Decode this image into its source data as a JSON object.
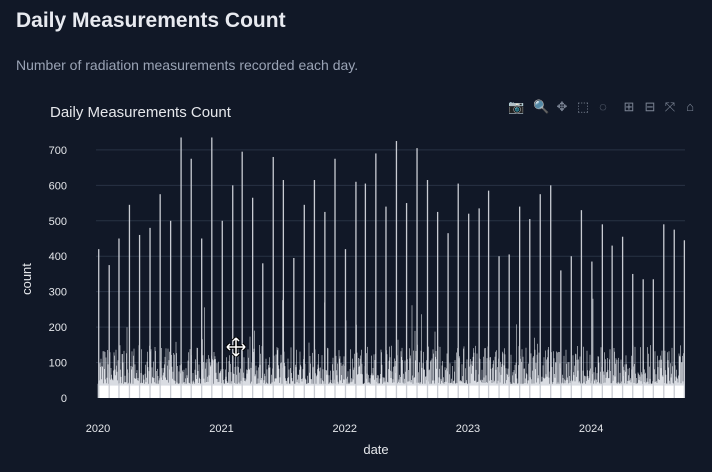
{
  "page": {
    "title": "Daily Measurements Count",
    "subtitle": "Number of radiation measurements recorded each day."
  },
  "toolbar": [
    {
      "name": "camera-icon",
      "glyph": "📷"
    },
    {
      "name": "zoom-icon",
      "glyph": "🔍"
    },
    {
      "name": "pan-icon",
      "glyph": "✥"
    },
    {
      "name": "box-select-icon",
      "glyph": "⬚"
    },
    {
      "name": "lasso-select-icon",
      "glyph": "◌"
    },
    {
      "name": "zoom-in-icon",
      "glyph": "⊞"
    },
    {
      "name": "zoom-out-icon",
      "glyph": "⊟"
    },
    {
      "name": "autoscale-icon",
      "glyph": "⤧"
    },
    {
      "name": "reset-axes-icon",
      "glyph": "⌂"
    }
  ],
  "colors": {
    "background": "#111827",
    "bar": "#f3f4f6",
    "grid": "#283244",
    "text": "#e5e7eb"
  },
  "chart_data": {
    "type": "bar",
    "title": "Daily Measurements Count",
    "xlabel": "date",
    "ylabel": "count",
    "xlim": [
      "2020-01-01",
      "2024-10-05"
    ],
    "ylim": [
      0,
      742
    ],
    "grid": true,
    "x_ticks": [
      "2020",
      "2021",
      "2022",
      "2023",
      "2024"
    ],
    "y_ticks": [
      0,
      100,
      200,
      300,
      400,
      500,
      600,
      700
    ],
    "typical_daily_range": [
      40,
      150
    ],
    "spikes": {
      "x": [
        "2020-01-03",
        "2020-02-03",
        "2020-03-03",
        "2020-04-03",
        "2020-05-03",
        "2020-06-03",
        "2020-07-03",
        "2020-08-03",
        "2020-09-03",
        "2020-10-03",
        "2020-11-03",
        "2020-12-03",
        "2021-01-03",
        "2021-02-03",
        "2021-03-03",
        "2021-04-03",
        "2021-05-03",
        "2021-06-03",
        "2021-07-03",
        "2021-08-03",
        "2021-09-03",
        "2021-10-03",
        "2021-11-03",
        "2021-12-03",
        "2022-01-03",
        "2022-02-03",
        "2022-03-03",
        "2022-04-03",
        "2022-05-03",
        "2022-06-03",
        "2022-07-03",
        "2022-08-03",
        "2022-09-03",
        "2022-10-03",
        "2022-11-03",
        "2022-12-03",
        "2023-01-03",
        "2023-02-03",
        "2023-03-03",
        "2023-04-03",
        "2023-05-03",
        "2023-06-03",
        "2023-07-03",
        "2023-08-03",
        "2023-09-03",
        "2023-10-03",
        "2023-11-03",
        "2023-12-03",
        "2024-01-03",
        "2024-02-03",
        "2024-03-03",
        "2024-04-03",
        "2024-05-03",
        "2024-06-03",
        "2024-07-03",
        "2024-08-03",
        "2024-09-03",
        "2024-10-03"
      ],
      "values": [
        420,
        375,
        450,
        545,
        460,
        480,
        575,
        500,
        735,
        675,
        450,
        735,
        500,
        600,
        695,
        565,
        380,
        680,
        615,
        395,
        545,
        615,
        525,
        675,
        420,
        610,
        605,
        690,
        540,
        725,
        550,
        705,
        615,
        525,
        465,
        605,
        520,
        535,
        585,
        400,
        405,
        540,
        505,
        575,
        600,
        360,
        400,
        530,
        385,
        490,
        430,
        455,
        350,
        335,
        335,
        490,
        475,
        445
      ]
    }
  }
}
